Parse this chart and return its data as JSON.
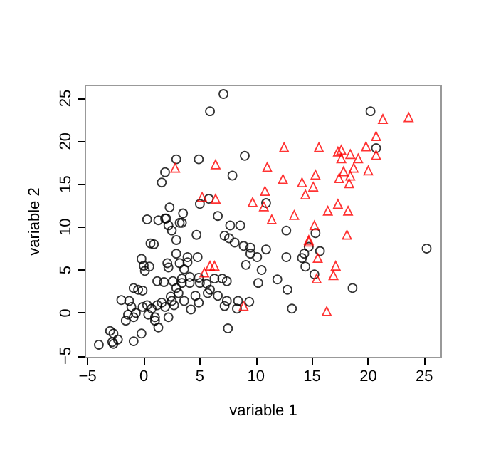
{
  "chart_data": {
    "type": "scatter",
    "xlabel": "variable 1",
    "ylabel": "variable 2",
    "xlim": [
      -5.2,
      26.5
    ],
    "ylim": [
      -5.2,
      26.5
    ],
    "xticks": [
      -5,
      0,
      5,
      10,
      15,
      20,
      25
    ],
    "yticks": [
      -5,
      0,
      5,
      10,
      15,
      20,
      25
    ],
    "grid": false,
    "series": [
      {
        "color": "#000000",
        "marker": "circle",
        "x": [
          7.1,
          5.9,
          2.9,
          4.9,
          9.0,
          1.9,
          1.6,
          7.9,
          2.3,
          3.5,
          5.0,
          5.8,
          6.6,
          0.3,
          1.3,
          2.0,
          3.2,
          7.7,
          8.6,
          10.9,
          20.2,
          20.7,
          12.7,
          15.3,
          10.9,
          10.1,
          12.7,
          14.1,
          14.3,
          14.7,
          15.7,
          10.5,
          14.4,
          15.2,
          10.2,
          11.9,
          12.8,
          18.6,
          13.2,
          25.2,
          1.9,
          2.2,
          2.5,
          3.4,
          4.7,
          7.2,
          7.6,
          8.1,
          8.9,
          9.5,
          9.5,
          9.1,
          0.6,
          0.9,
          2.9,
          2.9,
          3.9,
          4.8,
          -0.2,
          0,
          0.5,
          0.1,
          2.1,
          2.2,
          3.2,
          3.6,
          3.9,
          1.2,
          1.8,
          2.6,
          3.4,
          4.1,
          2.9,
          3.1,
          2.4,
          3.4,
          4.9,
          5.0,
          5.6,
          5.9,
          6.6,
          5.7,
          6.3,
          7.0,
          7.4,
          4.1,
          4.6,
          4.9,
          4.2,
          3.6,
          -0.9,
          -0.5,
          -0.1,
          -1.3,
          -2.0,
          -1.1,
          -1.4,
          -0.9,
          -1.6,
          -0.7,
          -0.1,
          0.3,
          0.7,
          0.4,
          1.0,
          1.2,
          1.6,
          1.9,
          2.2,
          1.3,
          1.0,
          2.5,
          2.7,
          7.2,
          7.4,
          8.4,
          8.3,
          9.4,
          7.5,
          -0.2,
          -0.9,
          -3.0,
          -2.7,
          -2.3,
          -2.7,
          -4.0,
          -2.8
        ],
        "values": [
          25.5,
          23.5,
          17.9,
          17.9,
          18.3,
          16.4,
          15.2,
          16.0,
          12.3,
          11.6,
          12.7,
          13.3,
          11.3,
          10.9,
          10.8,
          11.0,
          10.5,
          10.2,
          10.2,
          12.8,
          23.5,
          19.2,
          9.6,
          9.3,
          7.4,
          6.5,
          6.5,
          6.4,
          6.9,
          7.7,
          7.2,
          5.0,
          5.4,
          4.5,
          3.5,
          3.9,
          2.7,
          2.9,
          0.5,
          7.5,
          11.0,
          10.2,
          9.6,
          10.5,
          9.1,
          9.0,
          8.7,
          8.2,
          7.8,
          7.6,
          6.9,
          5.6,
          8.1,
          8.0,
          8.5,
          6.9,
          6.5,
          6.5,
          6.3,
          5.5,
          5.4,
          4.9,
          5.8,
          5.3,
          5.8,
          5.1,
          5.9,
          3.7,
          3.6,
          3.7,
          4.0,
          4.2,
          2.9,
          2.3,
          1.9,
          3.5,
          4.1,
          3.5,
          3.4,
          2.7,
          2.0,
          2.3,
          4.0,
          4.0,
          3.7,
          3.5,
          2.0,
          1.2,
          0.4,
          1.4,
          2.9,
          2.7,
          2.6,
          1.4,
          1.5,
          0.7,
          -0.2,
          -0.5,
          -0.9,
          0,
          0.7,
          0.9,
          0.5,
          -0.2,
          -0.5,
          0.9,
          1.2,
          0.7,
          -0.5,
          -1.7,
          -0.9,
          1.4,
          0.9,
          0.8,
          1.4,
          1.4,
          0.5,
          1.3,
          -1.8,
          -2.4,
          -3.3,
          -2.1,
          -2.4,
          -3.1,
          -3.6,
          -3.7,
          -3.4
        ]
      },
      {
        "color": "#ff0000",
        "marker": "triangle",
        "x": [
          21.3,
          23.6,
          20.7,
          20.7,
          19.8,
          19.1,
          18.4,
          17.6,
          17.3,
          17.6,
          15.6,
          12.5,
          20.0,
          18.7,
          17.8,
          17.4,
          18.4,
          18.3,
          15.3,
          15.1,
          14.1,
          14.4,
          12.4,
          11.0,
          10.8,
          10.7,
          11.4,
          13.4,
          16.4,
          17.3,
          18.2,
          15.2,
          18.1,
          14.7,
          14.7,
          15.5,
          17.1,
          16.9,
          15.4,
          16.3,
          2.8,
          6.4,
          9.7,
          5.2,
          6.4,
          5.4,
          5.9,
          6.3,
          8.9
        ],
        "values": [
          22.6,
          22.8,
          20.6,
          18.4,
          19.4,
          18.0,
          18.5,
          19.0,
          18.8,
          18.0,
          19.3,
          19.3,
          16.6,
          16.9,
          16.5,
          15.7,
          16.0,
          15.1,
          16.1,
          14.7,
          15.2,
          13.8,
          15.6,
          17.0,
          14.2,
          12.4,
          10.9,
          11.4,
          11.9,
          12.7,
          11.9,
          10.2,
          9.1,
          8.3,
          8.5,
          6.4,
          5.5,
          4.4,
          4.0,
          0.2,
          16.9,
          17.3,
          12.9,
          13.5,
          13.3,
          4.7,
          5.5,
          5.5,
          0.8
        ]
      }
    ]
  }
}
